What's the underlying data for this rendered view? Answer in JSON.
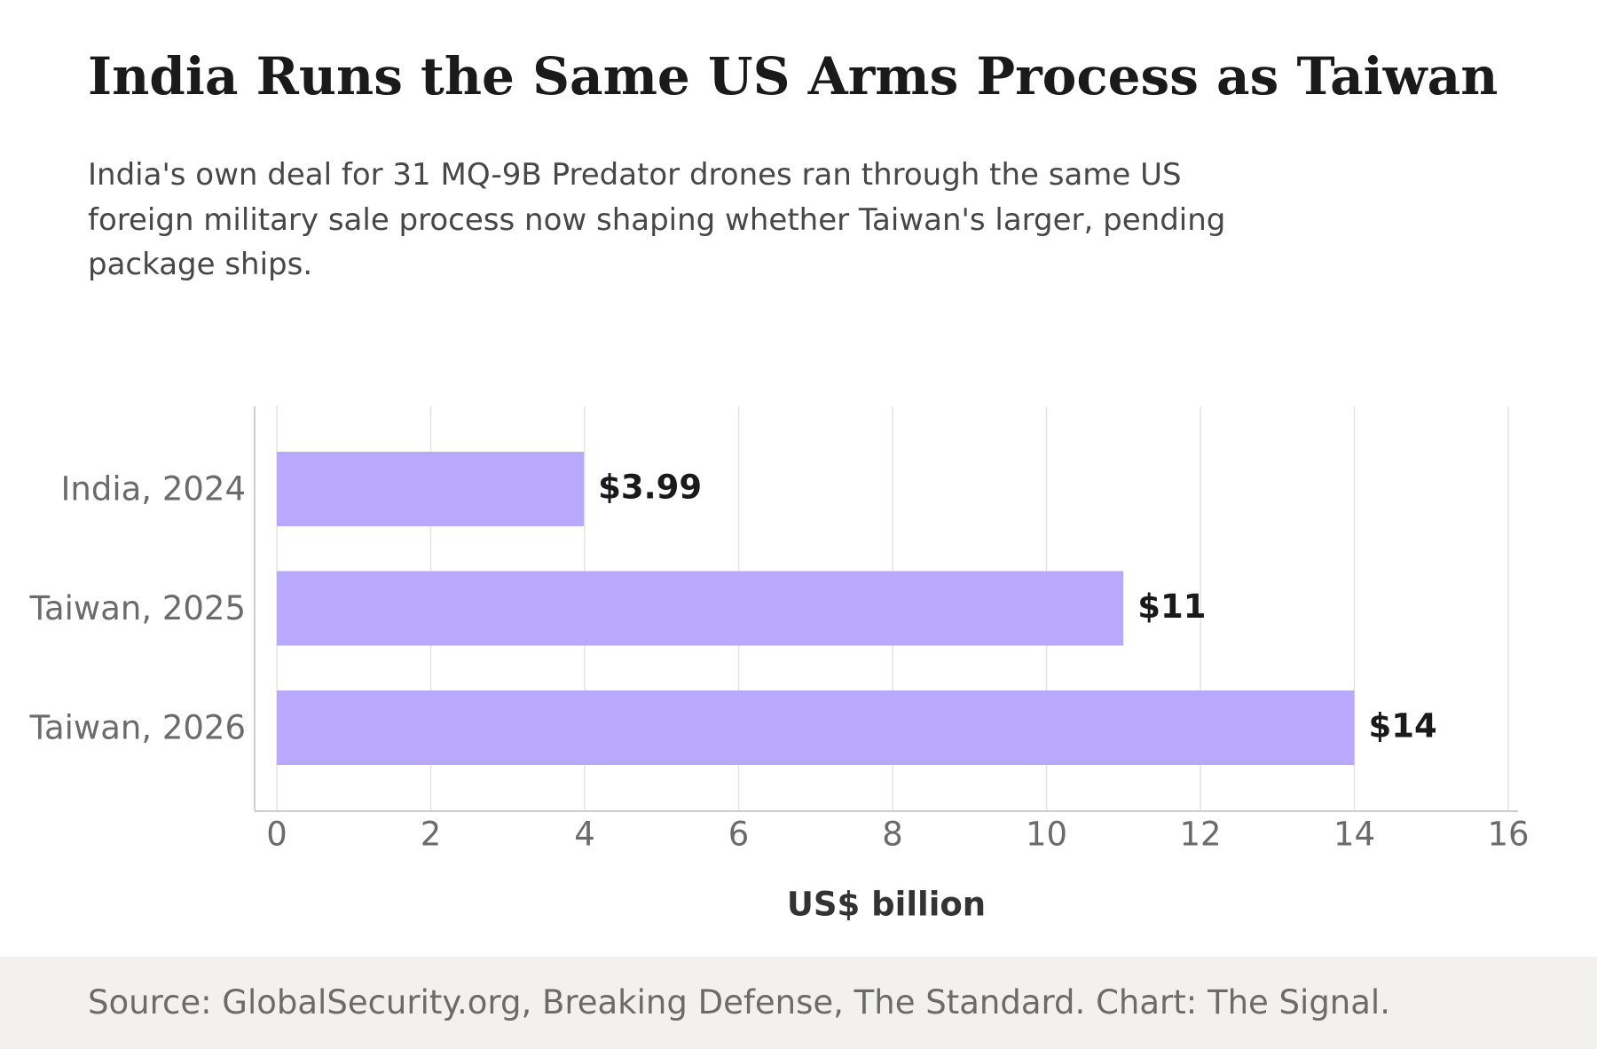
{
  "header": {
    "title": "India Runs the Same US Arms Process as Taiwan",
    "subtitle": "India's own deal for 31 MQ-9B Predator drones ran through the same US foreign military sale process now shaping whether Taiwan's larger, pending package ships."
  },
  "footer": {
    "source": "Source: GlobalSecurity.org, Breaking Defense, The Standard. Chart: The Signal."
  },
  "colors": {
    "bar": "#b8a9fc",
    "grid": "#e3e3e3",
    "axis": "#cfcfcf",
    "tick_label": "#6b6b6b",
    "value_label": "#1a1a1a",
    "axis_title": "#333333",
    "footer_background": "#f2f1ef"
  },
  "chart_data": {
    "type": "bar",
    "orientation": "horizontal",
    "categories": [
      "India, 2024",
      "Taiwan, 2025",
      "Taiwan, 2026"
    ],
    "values": [
      3.99,
      11,
      14
    ],
    "value_labels": [
      "$3.99",
      "$11",
      "$14"
    ],
    "xlabel": "US$ billion",
    "xlim": [
      0,
      16
    ],
    "xticks": [
      0,
      2,
      4,
      6,
      8,
      10,
      12,
      14,
      16
    ],
    "grid": true
  }
}
